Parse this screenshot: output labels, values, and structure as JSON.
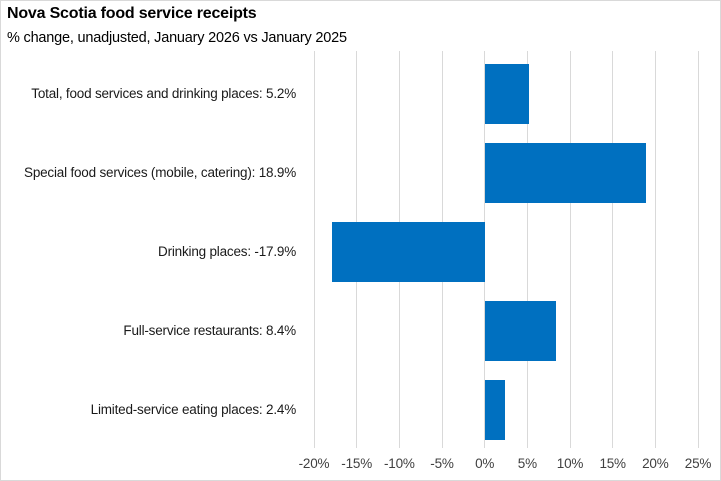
{
  "chart_data": {
    "type": "bar",
    "orientation": "horizontal",
    "title": "Nova Scotia food service receipts",
    "subtitle": "% change, unadjusted, January 2026 vs January 2025",
    "categories": [
      "Total, food services and drinking places",
      "Special food services (mobile, catering)",
      "Drinking places",
      "Full-service restaurants",
      "Limited-service eating places"
    ],
    "values": [
      5.2,
      18.9,
      -17.9,
      8.4,
      2.4
    ],
    "category_labels": [
      "Total, food services and drinking places: 5.2%",
      "Special food services (mobile, catering): 18.9%",
      "Drinking places: -17.9%",
      "Full-service restaurants: 8.4%",
      "Limited-service eating places: 2.4%"
    ],
    "xlabel": "",
    "ylabel": "",
    "xlim": [
      -20,
      25
    ],
    "x_ticks": {
      "values": [
        -20,
        -15,
        -10,
        -5,
        0,
        5,
        10,
        15,
        20,
        25
      ],
      "labels": [
        "-20%",
        "-15%",
        "-10%",
        "-5%",
        "0%",
        "5%",
        "10%",
        "15%",
        "20%",
        "25%"
      ]
    },
    "grid": true,
    "legend": "none",
    "colors": {
      "bar": "#0070C0",
      "gridline": "#D9D9D9",
      "tick_label": "#404040",
      "category_label": "#1A1A1A",
      "title": "#000000",
      "border": "#D9D9D9",
      "background": "#FFFFFF"
    }
  }
}
